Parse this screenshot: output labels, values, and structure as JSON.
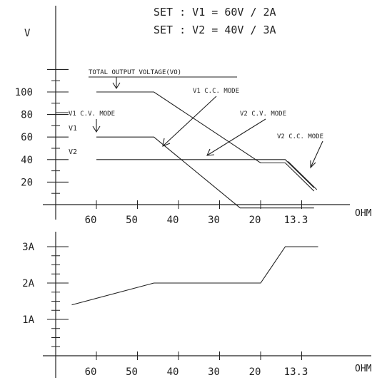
{
  "chart_data": [
    {
      "type": "line",
      "title": "",
      "header_lines": [
        "SET : V1 = 60V / 2A",
        "SET : V2 = 40V / 3A"
      ],
      "ylabel": "V",
      "xlabel": "OHM",
      "x_ticks": [
        "60",
        "50",
        "40",
        "30",
        "20",
        "13.3"
      ],
      "y_ticks": [
        20,
        40,
        60,
        80,
        100
      ],
      "ylim": [
        0,
        130
      ],
      "series": [
        {
          "name": "TOTAL OUTPUT VOLTAGE(VO)",
          "points": [
            [
              0,
              100
            ],
            [
              1.4,
              100
            ],
            [
              4.0,
              37
            ],
            [
              4.6,
              37
            ],
            [
              5.3,
              12
            ]
          ]
        },
        {
          "name": "V1",
          "points": [
            [
              0,
              60
            ],
            [
              1.4,
              60
            ],
            [
              3.5,
              -3
            ],
            [
              4.2,
              -3
            ],
            [
              5.3,
              -3
            ]
          ]
        },
        {
          "name": "V2",
          "points": [
            [
              0,
              40
            ],
            [
              4.6,
              40
            ],
            [
              5.3,
              15
            ]
          ]
        }
      ],
      "annotations": [
        {
          "id": "vo",
          "text": "TOTAL OUTPUT VOLTAGE(VO)"
        },
        {
          "id": "v1cv",
          "text": "V1 C.V. MODE"
        },
        {
          "id": "v1cc",
          "text": "V1 C.C. MODE"
        },
        {
          "id": "v2cv",
          "text": "V2 C.V. MODE"
        },
        {
          "id": "v2cc",
          "text": "V2 C.C. MODE"
        }
      ],
      "curve_labels": [
        "V1",
        "V2"
      ]
    },
    {
      "type": "line",
      "title": "",
      "xlabel": "OHM",
      "x_ticks": [
        "60",
        "50",
        "40",
        "30",
        "20",
        "13.3"
      ],
      "y_ticks": [
        "1A",
        "2A",
        "3A"
      ],
      "ylim": [
        0,
        3.5
      ],
      "series": [
        {
          "name": "",
          "points": [
            [
              -0.6,
              1.4
            ],
            [
              1.4,
              2.0
            ],
            [
              4.0,
              2.0
            ],
            [
              4.6,
              3.0
            ],
            [
              5.4,
              3.0
            ]
          ]
        }
      ]
    }
  ]
}
